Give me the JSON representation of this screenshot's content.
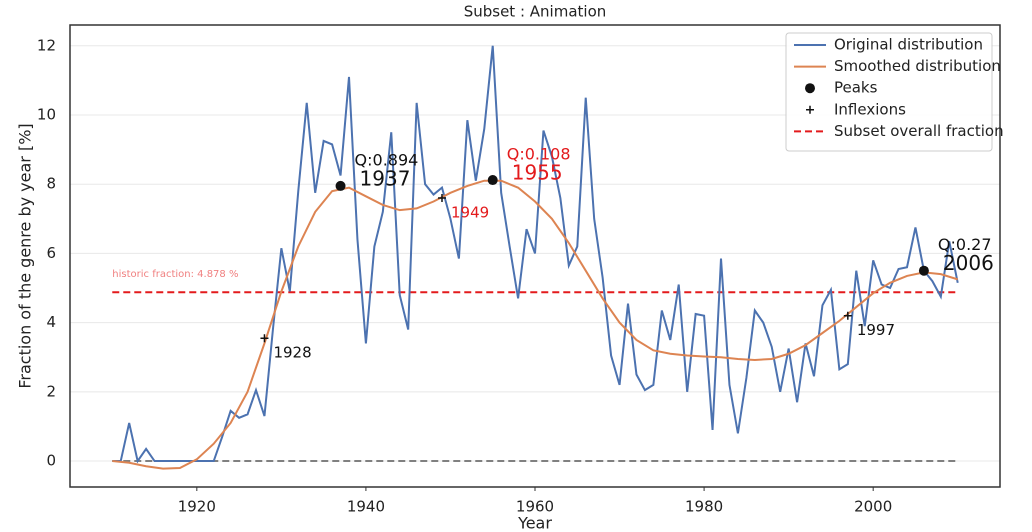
{
  "chart_data": {
    "type": "line",
    "title": "Subset : Animation",
    "x_label": "Year",
    "y_label": "Fraction of the genre by year [%]",
    "xlim": [
      1905,
      2015
    ],
    "ylim": [
      -0.75,
      12.6
    ],
    "xticks": [
      1920,
      1940,
      1960,
      1980,
      2000
    ],
    "yticks": [
      0,
      2,
      4,
      6,
      8,
      10,
      12
    ],
    "grid": true,
    "legend": "upper right",
    "x": [
      1910,
      1911,
      1912,
      1913,
      1914,
      1915,
      1916,
      1917,
      1918,
      1919,
      1920,
      1921,
      1922,
      1923,
      1924,
      1925,
      1926,
      1927,
      1928,
      1929,
      1930,
      1931,
      1932,
      1933,
      1934,
      1935,
      1936,
      1937,
      1938,
      1939,
      1940,
      1941,
      1942,
      1943,
      1944,
      1945,
      1946,
      1947,
      1948,
      1949,
      1950,
      1951,
      1952,
      1953,
      1954,
      1955,
      1956,
      1957,
      1958,
      1959,
      1960,
      1961,
      1962,
      1963,
      1964,
      1965,
      1966,
      1967,
      1968,
      1969,
      1970,
      1971,
      1972,
      1973,
      1974,
      1975,
      1976,
      1977,
      1978,
      1979,
      1980,
      1981,
      1982,
      1983,
      1984,
      1985,
      1986,
      1987,
      1988,
      1989,
      1990,
      1991,
      1992,
      1993,
      1994,
      1995,
      1996,
      1997,
      1998,
      1999,
      2000,
      2001,
      2002,
      2003,
      2004,
      2005,
      2006,
      2007,
      2008,
      2009,
      2010
    ],
    "series": [
      {
        "name": "Original distribution",
        "color": "#4c72b0",
        "marker": "line",
        "values": [
          0,
          0,
          1.1,
          0,
          0.35,
          0,
          0,
          0,
          0,
          0,
          0,
          0,
          0,
          0.7,
          1.45,
          1.25,
          1.35,
          2.05,
          1.3,
          3.8,
          6.15,
          4.9,
          7.8,
          10.35,
          7.75,
          9.25,
          9.15,
          8.25,
          11.1,
          6.4,
          3.4,
          6.2,
          7.2,
          9.5,
          4.8,
          3.8,
          10.35,
          8.0,
          7.7,
          7.9,
          7.0,
          5.85,
          9.85,
          8.1,
          9.6,
          12.0,
          7.75,
          6.2,
          4.7,
          6.7,
          6.0,
          9.55,
          8.8,
          7.6,
          5.65,
          6.2,
          10.5,
          7.0,
          5.3,
          3.05,
          2.2,
          4.55,
          2.5,
          2.05,
          2.2,
          4.35,
          3.5,
          5.1,
          2.0,
          4.25,
          4.2,
          0.9,
          5.85,
          2.2,
          0.8,
          2.4,
          4.35,
          4.0,
          3.3,
          2.0,
          3.25,
          1.7,
          3.4,
          2.45,
          4.5,
          4.95,
          2.65,
          2.8,
          5.5,
          3.9,
          5.8,
          5.1,
          5.0,
          5.55,
          5.6,
          6.75,
          5.5,
          5.2,
          4.75,
          6.35,
          5.15
        ]
      },
      {
        "name": "Smoothed distribution",
        "color": "#dd8452",
        "marker": "line",
        "x": [
          1910,
          1912,
          1914,
          1916,
          1918,
          1920,
          1922,
          1924,
          1926,
          1928,
          1930,
          1932,
          1934,
          1936,
          1938,
          1940,
          1942,
          1944,
          1946,
          1948,
          1950,
          1952,
          1954,
          1956,
          1958,
          1960,
          1962,
          1964,
          1966,
          1968,
          1970,
          1972,
          1974,
          1976,
          1978,
          1980,
          1982,
          1984,
          1986,
          1988,
          1990,
          1992,
          1994,
          1996,
          1998,
          2000,
          2002,
          2004,
          2006,
          2008,
          2010
        ],
        "values": [
          0,
          -0.05,
          -0.15,
          -0.22,
          -0.2,
          0.05,
          0.5,
          1.1,
          2.0,
          3.4,
          4.9,
          6.2,
          7.2,
          7.8,
          7.9,
          7.65,
          7.4,
          7.25,
          7.3,
          7.5,
          7.75,
          7.95,
          8.1,
          8.1,
          7.9,
          7.5,
          7.0,
          6.3,
          5.5,
          4.7,
          4.0,
          3.5,
          3.2,
          3.1,
          3.05,
          3.02,
          3.0,
          2.95,
          2.92,
          2.95,
          3.1,
          3.35,
          3.7,
          4.05,
          4.45,
          4.85,
          5.15,
          5.35,
          5.45,
          5.4,
          5.25
        ]
      },
      {
        "name": "Peaks",
        "color": "#111111",
        "marker": "dot",
        "x": [
          1937,
          1955,
          2006
        ],
        "values": [
          7.95,
          8.12,
          5.5
        ],
        "annotations": [
          {
            "quality": "Q:0.894",
            "label": "1937",
            "color": "#111111"
          },
          {
            "quality": "Q:0.108",
            "label": "1955",
            "color": "#e31a1c"
          },
          {
            "quality": "Q:0.27",
            "label": "2006",
            "color": "#111111"
          }
        ]
      },
      {
        "name": "Inflexions",
        "color": "#111111",
        "marker": "plus",
        "x": [
          1928,
          1949,
          1997
        ],
        "values": [
          3.55,
          7.6,
          4.2
        ],
        "annotations": [
          {
            "label": "1928",
            "color": "#111111"
          },
          {
            "label": "1949",
            "color": "#e31a1c"
          },
          {
            "label": "1997",
            "color": "#111111"
          }
        ]
      }
    ],
    "hlines": [
      {
        "name": "Subset overall fraction",
        "value": 4.878,
        "color": "#e31a1c",
        "label": "historic fraction: 4.878 %",
        "label_color": "#f08080"
      }
    ],
    "baseline": {
      "value": 0,
      "color": "#808080"
    }
  }
}
